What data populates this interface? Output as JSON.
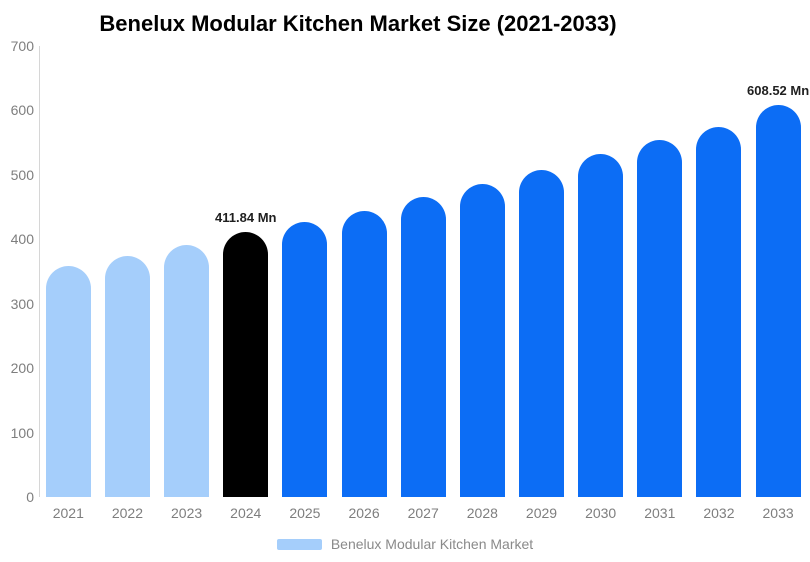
{
  "title": "Benelux Modular Kitchen Market Size (2021-2033)",
  "legend": {
    "label": "Benelux Modular Kitchen Market",
    "swatch_color": "#A5CEFB"
  },
  "colors": {
    "light_blue_bar": "#A5CEFB",
    "highlight_black_bar": "#000000",
    "blue_bar": "#0C6DF5",
    "axis_label_gray": "#7E7E7E",
    "axis_line_gray": "#D6D6D6",
    "data_label": "#1F1F1F",
    "legend_text_gray": "#8A8A8A",
    "title": "#000000",
    "background": "#FFFFFF"
  },
  "chart_data": {
    "type": "bar",
    "title": "Benelux Modular Kitchen Market Size (2021-2033)",
    "unit": "Mn",
    "categories": [
      "2021",
      "2022",
      "2023",
      "2024",
      "2025",
      "2026",
      "2027",
      "2028",
      "2029",
      "2030",
      "2031",
      "2032",
      "2033"
    ],
    "series": [
      {
        "name": "Benelux Modular Kitchen Market",
        "values": [
          358,
          374,
          391,
          411.84,
          427,
          444,
          465,
          486,
          508,
          532,
          554,
          575,
          608.52
        ]
      }
    ],
    "labeled_points": [
      {
        "category": "2024",
        "value": 411.84,
        "label": "411.84 Mn"
      },
      {
        "category": "2033",
        "value": 608.52,
        "label": "608.52 Mn"
      }
    ],
    "data_labels": [
      "",
      "",
      "",
      "411.84 Mn",
      "",
      "",
      "",
      "",
      "",
      "",
      "",
      "",
      "608.52 Mn"
    ],
    "bar_colors": [
      "#A5CEFB",
      "#A5CEFB",
      "#A5CEFB",
      "#000000",
      "#0C6DF5",
      "#0C6DF5",
      "#0C6DF5",
      "#0C6DF5",
      "#0C6DF5",
      "#0C6DF5",
      "#0C6DF5",
      "#0C6DF5",
      "#0C6DF5"
    ],
    "xlabel": "",
    "ylabel": "",
    "ylim": [
      0,
      700
    ],
    "yticks": [
      0,
      100,
      200,
      300,
      400,
      500,
      600,
      700
    ],
    "grid": false,
    "legend_position": "bottom"
  }
}
